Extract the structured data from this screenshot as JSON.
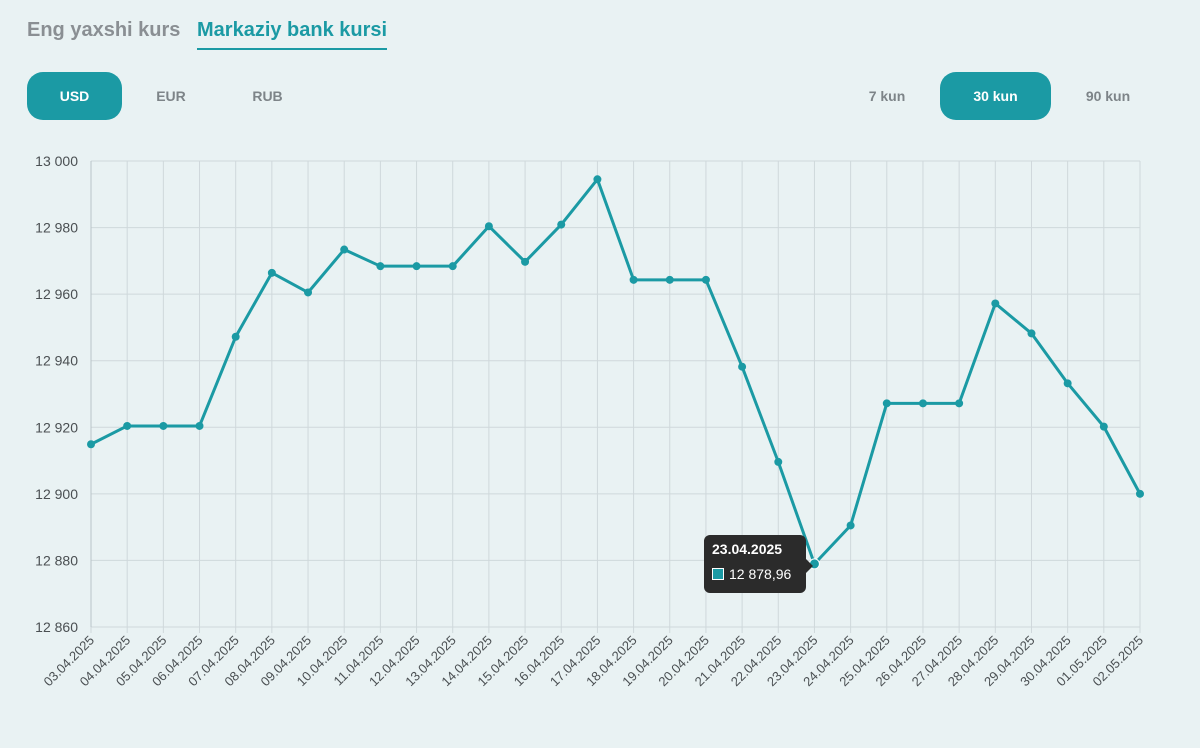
{
  "tabs": {
    "best": "Eng yaxshi kurs",
    "central": "Markaziy bank kursi"
  },
  "currencies": {
    "usd": "USD",
    "eur": "EUR",
    "rub": "RUB",
    "selected": "USD"
  },
  "periods": {
    "p7": "7 kun",
    "p30": "30 kun",
    "p90": "90 kun",
    "selected": "30 kun"
  },
  "tooltip": {
    "date": "23.04.2025",
    "value": "12 878,96"
  },
  "colors": {
    "accent": "#1b9aa4",
    "grid": "#cfd8db",
    "background": "#e9f2f3"
  },
  "chart_data": {
    "type": "line",
    "ylim": [
      12860,
      13000
    ],
    "yticks": [
      "12 860",
      "12 880",
      "12 900",
      "12 920",
      "12 940",
      "12 960",
      "12 980",
      "13 000"
    ],
    "grid": true,
    "categories": [
      "03.04.2025",
      "04.04.2025",
      "05.04.2025",
      "06.04.2025",
      "07.04.2025",
      "08.04.2025",
      "09.04.2025",
      "10.04.2025",
      "11.04.2025",
      "12.04.2025",
      "13.04.2025",
      "14.04.2025",
      "15.04.2025",
      "16.04.2025",
      "17.04.2025",
      "18.04.2025",
      "19.04.2025",
      "20.04.2025",
      "21.04.2025",
      "22.04.2025",
      "23.04.2025",
      "24.04.2025",
      "25.04.2025",
      "26.04.2025",
      "27.04.2025",
      "28.04.2025",
      "29.04.2025",
      "30.04.2025",
      "01.05.2025",
      "02.05.2025"
    ],
    "series": [
      {
        "values": [
          12914.9,
          12920.4,
          12920.4,
          12920.4,
          12947.2,
          12966.4,
          12960.5,
          12973.4,
          12968.4,
          12968.4,
          12968.4,
          12980.4,
          12969.7,
          12980.9,
          12994.5,
          12964.3,
          12964.3,
          12964.3,
          12938.2,
          12909.6,
          12878.96,
          12890.5,
          12927.2,
          12927.2,
          12927.2,
          12957.2,
          12948.2,
          12933.2,
          12920.2,
          12900.0
        ]
      }
    ]
  }
}
